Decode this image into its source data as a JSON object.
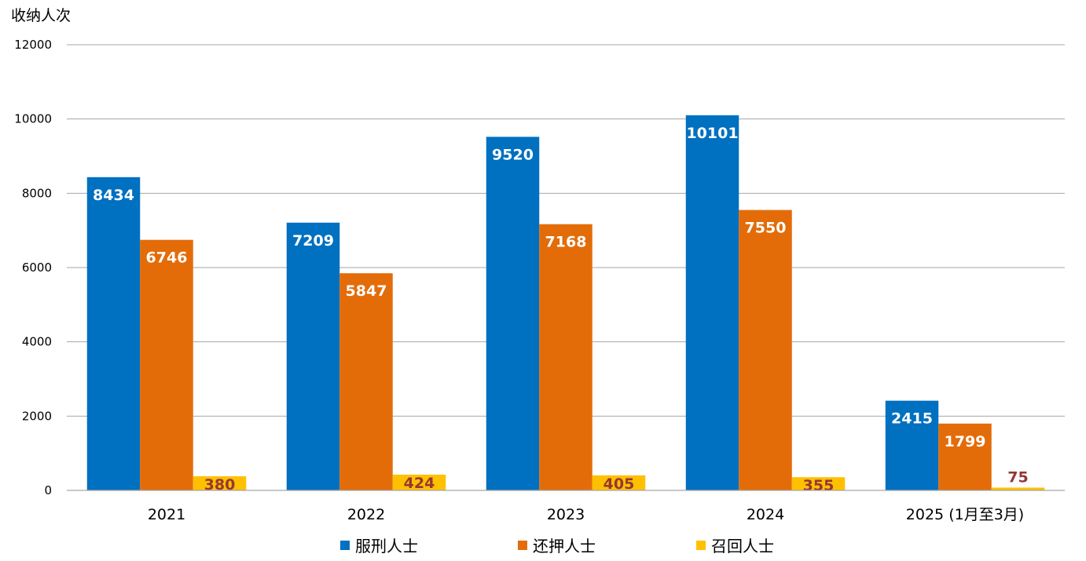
{
  "chart_data": {
    "type": "bar",
    "title": "",
    "ylabel": "收纳人次",
    "xlabel": "",
    "ylim": [
      0,
      12000
    ],
    "yticks": [
      0,
      2000,
      4000,
      6000,
      8000,
      10000,
      12000
    ],
    "grid": true,
    "legend_position": "bottom",
    "categories": [
      "2021",
      "2022",
      "2023",
      "2024",
      "2025 (1月至3月)"
    ],
    "series": [
      {
        "name": "服刑人士",
        "color": "#0070C0",
        "label_color": "#FFFFFF",
        "values": [
          8434,
          7209,
          9520,
          10101,
          2415
        ]
      },
      {
        "name": "还押人士",
        "color": "#E36C09",
        "label_color": "#FFFFFF",
        "values": [
          6746,
          5847,
          7168,
          7550,
          1799
        ]
      },
      {
        "name": "召回人士",
        "color": "#FFC000",
        "label_color": "#953735",
        "values": [
          380,
          424,
          405,
          355,
          75
        ]
      }
    ]
  }
}
